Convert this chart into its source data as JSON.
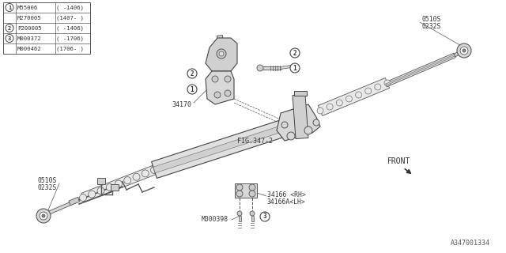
{
  "bg_color": "#ffffff",
  "fig_number": "A347001334",
  "parts_table": [
    [
      "1",
      "M55006",
      "( -1406)"
    ],
    [
      "",
      "M270005",
      "(1407- )"
    ],
    [
      "2",
      "P200005",
      "( -1406)"
    ],
    [
      "3",
      "M000372",
      "( -1706)"
    ],
    [
      "",
      "M000462",
      "(1706- )"
    ]
  ],
  "line_color": "#555555",
  "rack_color": "#e8e8e8",
  "rack_edge": "#444444"
}
